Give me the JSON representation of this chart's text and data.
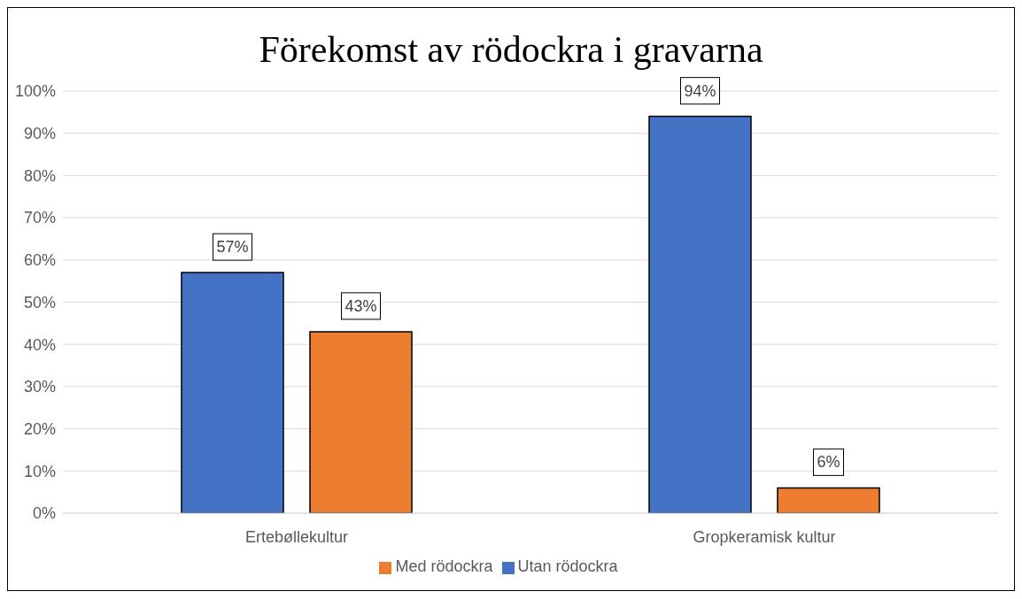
{
  "chart_data": {
    "type": "bar",
    "title": "Förekomst av rödockra i gravarna",
    "categories": [
      "Ertebøllekultur",
      "Gropkeramisk kultur"
    ],
    "series": [
      {
        "name": "Utan rödockra",
        "color": "#4472c4",
        "values": [
          57,
          94
        ],
        "value_labels": [
          "57%",
          "94%"
        ]
      },
      {
        "name": "Med rödockra",
        "color": "#ed7d31",
        "values": [
          43,
          6
        ],
        "value_labels": [
          "43%",
          "6%"
        ]
      }
    ],
    "ylim": [
      0,
      100
    ],
    "yticks": [
      {
        "value": 0,
        "label": "0%"
      },
      {
        "value": 10,
        "label": "10%"
      },
      {
        "value": 20,
        "label": "20%"
      },
      {
        "value": 30,
        "label": "30%"
      },
      {
        "value": 40,
        "label": "40%"
      },
      {
        "value": 50,
        "label": "50%"
      },
      {
        "value": 60,
        "label": "60%"
      },
      {
        "value": 70,
        "label": "70%"
      },
      {
        "value": 80,
        "label": "80%"
      },
      {
        "value": 90,
        "label": "90%"
      },
      {
        "value": 100,
        "label": "100%"
      }
    ],
    "grid": "y",
    "legend": "bottom"
  }
}
